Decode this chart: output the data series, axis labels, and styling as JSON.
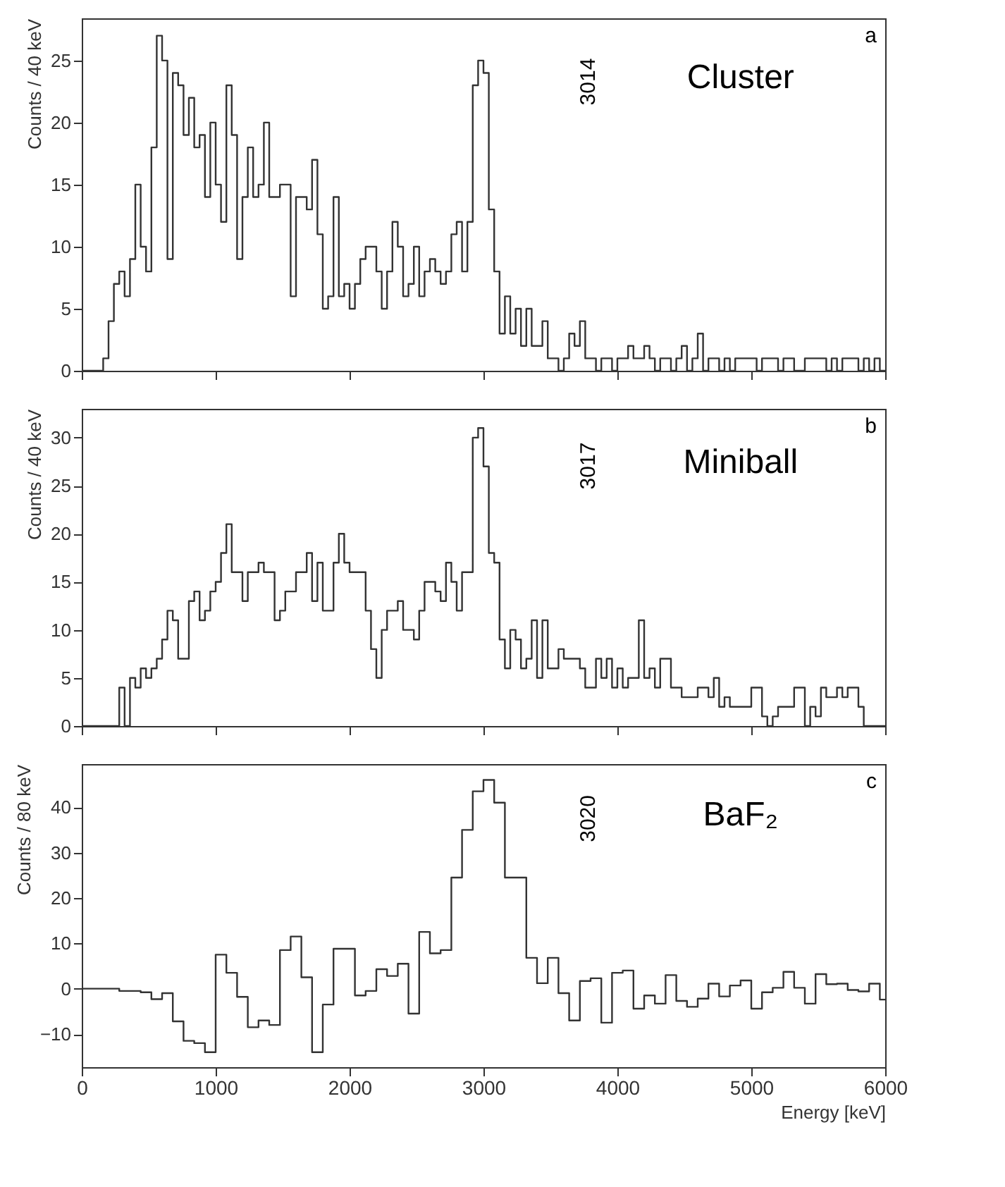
{
  "chart_data": [
    {
      "type": "histogram",
      "ylabel": "Counts / 40 keV",
      "color": "#333333",
      "tick_labels": "y",
      "xlim": [
        0,
        6000
      ],
      "xticks": [
        0,
        1000,
        2000,
        3000,
        4000,
        5000,
        6000
      ],
      "ylim": [
        0,
        28.4
      ],
      "yticks": [
        0,
        5,
        10,
        15,
        20,
        25
      ],
      "annotations": [
        "Cluster",
        "a",
        "3014"
      ],
      "bins": [
        0,
        40,
        80,
        120,
        160,
        200,
        240,
        280,
        320,
        360,
        400,
        440,
        480,
        520,
        560,
        600,
        640,
        680,
        720,
        760,
        800,
        840,
        880,
        920,
        960,
        1000,
        1040,
        1080,
        1120,
        1160,
        1200,
        1240,
        1280,
        1320,
        1360,
        1400,
        1440,
        1480,
        1520,
        1560,
        1600,
        1640,
        1680,
        1720,
        1760,
        1800,
        1840,
        1880,
        1920,
        1960,
        2000,
        2040,
        2080,
        2120,
        2160,
        2200,
        2240,
        2280,
        2320,
        2360,
        2400,
        2440,
        2480,
        2520,
        2560,
        2600,
        2640,
        2680,
        2720,
        2760,
        2800,
        2840,
        2880,
        2920,
        2960,
        3000,
        3040,
        3080,
        3120,
        3160,
        3200,
        3240,
        3280,
        3320,
        3360,
        3400,
        3440,
        3480,
        3520,
        3560,
        3600,
        3640,
        3680,
        3720,
        3760,
        3800,
        3840,
        3880,
        3920,
        3960,
        4000,
        4040,
        4080,
        4120,
        4160,
        4200,
        4240,
        4280,
        4320,
        4360,
        4400,
        4440,
        4480,
        4520,
        4560,
        4600,
        4640,
        4680,
        4720,
        4760,
        4800,
        4840,
        4880,
        4920,
        4960,
        5000,
        5040,
        5080,
        5120,
        5160,
        5200,
        5240,
        5280,
        5320,
        5360,
        5400,
        5440,
        5480,
        5520,
        5560,
        5600,
        5640,
        5680,
        5720,
        5760,
        5800,
        5840,
        5880,
        5920,
        5960,
        6000
      ],
      "values": [
        0,
        0,
        0,
        0,
        1,
        4,
        7,
        8,
        6,
        9,
        15,
        10,
        8,
        18,
        27,
        25,
        9,
        24,
        23,
        19,
        22,
        18,
        19,
        14,
        20,
        15,
        12,
        23,
        19,
        9,
        14,
        18,
        14,
        15,
        20,
        14,
        14,
        15,
        15,
        6,
        14,
        14,
        13,
        17,
        11,
        5,
        6,
        14,
        6,
        7,
        5,
        7,
        9,
        10,
        10,
        8,
        5,
        8,
        12,
        10,
        6,
        7,
        10,
        6,
        8,
        9,
        8,
        7,
        8,
        11,
        12,
        8,
        12,
        23,
        25,
        24,
        13,
        8,
        3,
        6,
        3,
        5,
        2,
        5,
        2,
        2,
        4,
        1,
        1,
        0,
        1,
        3,
        2,
        4,
        1,
        1,
        0,
        1,
        1,
        0,
        1,
        1,
        2,
        1,
        1,
        2,
        1,
        0,
        1,
        1,
        0,
        1,
        2,
        0,
        1,
        3,
        0,
        1,
        1,
        0,
        1,
        0,
        1,
        1,
        1,
        1,
        0,
        1,
        1,
        1,
        0,
        1,
        1,
        0,
        0,
        1,
        1,
        1,
        1,
        0,
        1,
        0,
        1,
        1,
        1,
        0,
        1,
        0,
        1,
        0
      ]
    },
    {
      "type": "histogram",
      "ylabel": "Counts / 40 keV",
      "color": "#333333",
      "tick_labels": "y",
      "xlim": [
        0,
        6000
      ],
      "xticks": [
        0,
        1000,
        2000,
        3000,
        4000,
        5000,
        6000
      ],
      "ylim": [
        0,
        33
      ],
      "yticks": [
        0,
        5,
        10,
        15,
        20,
        25,
        30
      ],
      "annotations": [
        "Miniball",
        "b",
        "3017"
      ],
      "bins": [
        0,
        40,
        80,
        120,
        160,
        200,
        240,
        280,
        320,
        360,
        400,
        440,
        480,
        520,
        560,
        600,
        640,
        680,
        720,
        760,
        800,
        840,
        880,
        920,
        960,
        1000,
        1040,
        1080,
        1120,
        1160,
        1200,
        1240,
        1280,
        1320,
        1360,
        1400,
        1440,
        1480,
        1520,
        1560,
        1600,
        1640,
        1680,
        1720,
        1760,
        1800,
        1840,
        1880,
        1920,
        1960,
        2000,
        2040,
        2080,
        2120,
        2160,
        2200,
        2240,
        2280,
        2320,
        2360,
        2400,
        2440,
        2480,
        2520,
        2560,
        2600,
        2640,
        2680,
        2720,
        2760,
        2800,
        2840,
        2880,
        2920,
        2960,
        3000,
        3040,
        3080,
        3120,
        3160,
        3200,
        3240,
        3280,
        3320,
        3360,
        3400,
        3440,
        3480,
        3520,
        3560,
        3600,
        3640,
        3680,
        3720,
        3760,
        3800,
        3840,
        3880,
        3920,
        3960,
        4000,
        4040,
        4080,
        4120,
        4160,
        4200,
        4240,
        4280,
        4320,
        4360,
        4400,
        4440,
        4480,
        4520,
        4560,
        4600,
        4640,
        4680,
        4720,
        4760,
        4800,
        4840,
        4880,
        4920,
        4960,
        5000,
        5040,
        5080,
        5120,
        5160,
        5200,
        5240,
        5280,
        5320,
        5360,
        5400,
        5440,
        5480,
        5520,
        5560,
        5600,
        5640,
        5680,
        5720,
        5760,
        5800,
        5840,
        5880,
        5920,
        5960,
        6000
      ],
      "values": [
        0,
        0,
        0,
        0,
        0,
        0,
        0,
        4,
        0,
        5,
        4,
        6,
        5,
        6,
        7,
        9,
        12,
        11,
        7,
        7,
        13,
        14,
        11,
        12,
        14,
        15,
        18,
        21,
        16,
        16,
        13,
        16,
        16,
        17,
        16,
        16,
        11,
        12,
        14,
        14,
        16,
        16,
        18,
        13,
        17,
        12,
        12,
        17,
        20,
        17,
        16,
        16,
        16,
        12,
        8,
        5,
        10,
        12,
        12,
        13,
        10,
        10,
        9,
        12,
        15,
        15,
        14,
        13,
        17,
        15,
        12,
        16,
        16,
        30,
        31,
        27,
        18,
        17,
        9,
        6,
        10,
        9,
        6,
        7,
        11,
        5,
        11,
        6,
        6,
        8,
        7,
        7,
        7,
        6,
        4,
        4,
        7,
        5,
        7,
        4,
        6,
        4,
        5,
        5,
        11,
        5,
        6,
        4,
        7,
        7,
        4,
        4,
        3,
        3,
        3,
        4,
        4,
        3,
        5,
        2,
        3,
        2,
        2,
        2,
        2,
        4,
        4,
        1,
        0,
        1,
        2,
        2,
        2,
        4,
        4,
        0,
        2,
        1,
        4,
        3,
        3,
        4,
        3,
        4,
        4,
        2,
        0,
        0,
        0,
        0
      ]
    },
    {
      "type": "histogram",
      "ylabel": "Counts / 80 keV",
      "xlabel": "Energy [keV]",
      "color": "#333333",
      "xlim": [
        0,
        6000
      ],
      "xticks": [
        0,
        1000,
        2000,
        3000,
        4000,
        5000,
        6000
      ],
      "ylim": [
        -17.3,
        49.5
      ],
      "yticks": [
        -10,
        0,
        10,
        20,
        30,
        40
      ],
      "annotations": [
        "BaF₂",
        "c",
        "3020"
      ],
      "bins": [
        0,
        40,
        120,
        200,
        280,
        360,
        440,
        520,
        600,
        680,
        760,
        840,
        920,
        1000,
        1080,
        1160,
        1240,
        1320,
        1400,
        1480,
        1560,
        1640,
        1720,
        1800,
        1880,
        1960,
        2040,
        2120,
        2200,
        2280,
        2360,
        2440,
        2520,
        2600,
        2680,
        2760,
        2840,
        2920,
        3000,
        3080,
        3160,
        3240,
        3320,
        3400,
        3480,
        3560,
        3640,
        3720,
        3800,
        3880,
        3960,
        4040,
        4120,
        4200,
        4280,
        4360,
        4440,
        4520,
        4600,
        4680,
        4760,
        4840,
        4920,
        5000,
        5080,
        5160,
        5240,
        5320,
        5400,
        5480,
        5560,
        5640,
        5720,
        5800,
        5880,
        5960,
        6000
      ],
      "values": [
        0,
        0,
        0,
        0,
        -0.5,
        -0.5,
        -0.8,
        -2.3,
        -1,
        -7.2,
        -11.5,
        -12,
        -14,
        7.5,
        3.5,
        -1.8,
        -8.5,
        -7,
        -8,
        8.5,
        11.5,
        2.5,
        -14,
        -3.5,
        8.8,
        8.8,
        -1.5,
        -0.5,
        4.3,
        2.8,
        5.5,
        -5.5,
        12.5,
        7.8,
        8.5,
        24.5,
        35,
        43.5,
        46,
        41,
        24.5,
        24.5,
        6.8,
        1.2,
        6.8,
        -1,
        -7,
        1.7,
        2.3,
        -7.5,
        3.5,
        4,
        -4.4,
        -1.5,
        -3.3,
        3,
        -2.7,
        -4,
        -2.2,
        1.1,
        -1.7,
        0.7,
        1.8,
        -4.4,
        -0.8,
        0.2,
        3.7,
        0.2,
        -3.3,
        3.2,
        1,
        1.1,
        -0.3,
        -0.6,
        1.1,
        -2.4
      ]
    }
  ]
}
